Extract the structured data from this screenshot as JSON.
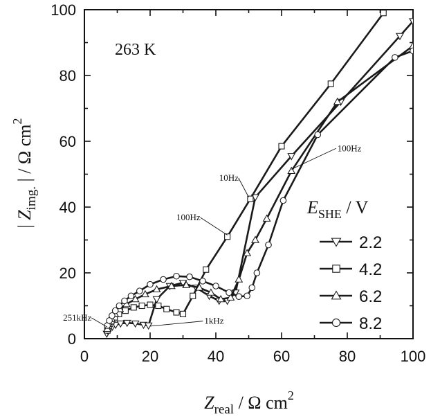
{
  "chart_data": {
    "type": "scatter",
    "title": "",
    "annotation_temperature": "263 K",
    "xlabel": {
      "symbol": "Z",
      "sub": "real",
      "unit": " / Ω cm",
      "sup": "2"
    },
    "ylabel": {
      "prefix": "| ",
      "symbol": "Z",
      "sub": "img.",
      "mid": " | / Ω cm",
      "sup": "2"
    },
    "xlim": [
      0,
      100
    ],
    "ylim": [
      0,
      100
    ],
    "x_ticks": [
      "0",
      "20",
      "40",
      "60",
      "80",
      "100"
    ],
    "y_ticks": [
      "0",
      "20",
      "40",
      "60",
      "80",
      "100"
    ],
    "legend": {
      "title_symbol": "E",
      "title_sub": "SHE",
      "title_unit": " / V",
      "placement": "center-right"
    },
    "series": [
      {
        "name": "2.2",
        "marker": "triangle-down",
        "x": [
          6.8,
          7.2,
          7.8,
          8.5,
          9.5,
          11.0,
          13.0,
          15.5,
          18.0,
          19.5,
          22.0,
          26.0,
          30.0,
          34.0,
          38.0,
          41.0,
          43.5,
          46.0,
          52.0,
          63.0,
          78.0,
          96.0,
          100.0
        ],
        "y": [
          1.5,
          2.3,
          3.0,
          3.6,
          4.2,
          4.6,
          4.8,
          4.6,
          4.2,
          4.0,
          12.0,
          16.0,
          17.0,
          15.5,
          13.0,
          11.5,
          11.5,
          14.0,
          43.0,
          55.5,
          72.0,
          92.0,
          96.5
        ]
      },
      {
        "name": "4.2",
        "marker": "square",
        "x": [
          7.0,
          7.5,
          8.2,
          9.2,
          10.5,
          12.5,
          15.0,
          17.5,
          20.0,
          22.5,
          25.0,
          28.0,
          30.0,
          33.0,
          37.0,
          43.5,
          50.5,
          60.0,
          75.0,
          91.0
        ],
        "y": [
          2.5,
          4.0,
          5.3,
          6.5,
          7.5,
          8.5,
          9.5,
          10.0,
          10.3,
          10.0,
          9.0,
          8.0,
          7.5,
          13.0,
          21.0,
          31.0,
          42.5,
          58.5,
          77.5,
          99.0
        ]
      },
      {
        "name": "6.2",
        "marker": "triangle-up",
        "x": [
          7.0,
          7.5,
          8.3,
          9.3,
          10.8,
          12.8,
          15.5,
          18.5,
          22.0,
          26.5,
          31.0,
          35.0,
          38.5,
          41.5,
          44.5,
          47.0,
          49.5,
          52.0,
          55.5,
          63.0,
          77.0,
          100.0
        ],
        "y": [
          3.0,
          4.5,
          6.0,
          7.5,
          9.0,
          10.5,
          12.0,
          13.5,
          15.0,
          16.0,
          16.3,
          15.5,
          14.0,
          12.0,
          12.5,
          18.0,
          26.0,
          30.0,
          36.5,
          51.0,
          72.0,
          89.0
        ]
      },
      {
        "name": "8.2",
        "marker": "circle",
        "x": [
          7.0,
          7.6,
          8.4,
          9.4,
          10.6,
          12.2,
          14.2,
          16.8,
          20.0,
          24.0,
          28.0,
          32.0,
          36.0,
          40.0,
          44.0,
          47.0,
          49.5,
          51.0,
          52.5,
          56.0,
          60.5,
          71.0,
          94.5,
          100.0
        ],
        "y": [
          4.0,
          5.5,
          7.0,
          8.5,
          10.0,
          11.5,
          13.0,
          14.5,
          16.5,
          18.0,
          19.0,
          18.8,
          17.5,
          16.0,
          14.0,
          12.8,
          13.0,
          15.5,
          20.0,
          28.5,
          42.0,
          62.0,
          85.5,
          87.5
        ]
      }
    ],
    "annotations": [
      {
        "text": "251kHz",
        "x": -6.5,
        "y": 5.5,
        "target": [
          7.0,
          3.5
        ]
      },
      {
        "text": "1kHz",
        "x": 36.5,
        "y": 4.5,
        "target": [
          20.0,
          3.8
        ]
      },
      {
        "text": "100Hz",
        "x": 28.0,
        "y": 36.0,
        "target": [
          43.5,
          31.5
        ]
      },
      {
        "text": "10Hz",
        "x": 41.0,
        "y": 48.0,
        "target": [
          50.0,
          43.0
        ]
      },
      {
        "text": "100Hz",
        "x": 77.0,
        "y": 57.0,
        "target": [
          63.0,
          51.5
        ]
      }
    ]
  }
}
